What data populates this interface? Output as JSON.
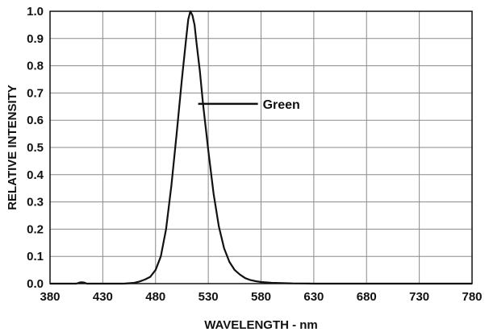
{
  "chart_data": {
    "type": "line",
    "xlabel": "WAVELENGTH - nm",
    "ylabel": "RELATIVE INTENSITY",
    "xlim": [
      380,
      780
    ],
    "ylim": [
      0,
      1.0
    ],
    "x_ticks": [
      380,
      430,
      480,
      530,
      580,
      630,
      680,
      730,
      780
    ],
    "y_ticks": [
      "0.0",
      "0.1",
      "0.2",
      "0.3",
      "0.4",
      "0.5",
      "0.6",
      "0.7",
      "0.8",
      "0.9",
      "1.0"
    ],
    "grid": true,
    "annotation": {
      "text": "Green",
      "x": 525,
      "y": 0.66
    },
    "series": [
      {
        "name": "Green",
        "x": [
          380,
          405,
          408,
          410,
          412,
          415,
          450,
          460,
          465,
          470,
          475,
          480,
          485,
          490,
          495,
          500,
          505,
          509,
          511,
          513,
          515,
          517,
          519,
          522,
          525,
          530,
          535,
          540,
          545,
          550,
          555,
          560,
          565,
          570,
          575,
          580,
          590,
          600,
          610,
          620,
          630,
          640,
          660,
          680,
          700,
          720,
          740,
          760,
          780
        ],
        "y": [
          0,
          0,
          0.004,
          0.005,
          0.004,
          0,
          0,
          0.003,
          0.008,
          0.015,
          0.025,
          0.05,
          0.1,
          0.2,
          0.36,
          0.55,
          0.75,
          0.9,
          0.97,
          1.0,
          0.985,
          0.95,
          0.88,
          0.78,
          0.66,
          0.49,
          0.33,
          0.21,
          0.13,
          0.08,
          0.05,
          0.033,
          0.02,
          0.013,
          0.009,
          0.006,
          0.003,
          0.002,
          0.001,
          0.0005,
          0,
          0,
          0,
          0,
          0,
          0,
          0,
          0,
          0
        ],
        "color": "#111111"
      }
    ]
  }
}
